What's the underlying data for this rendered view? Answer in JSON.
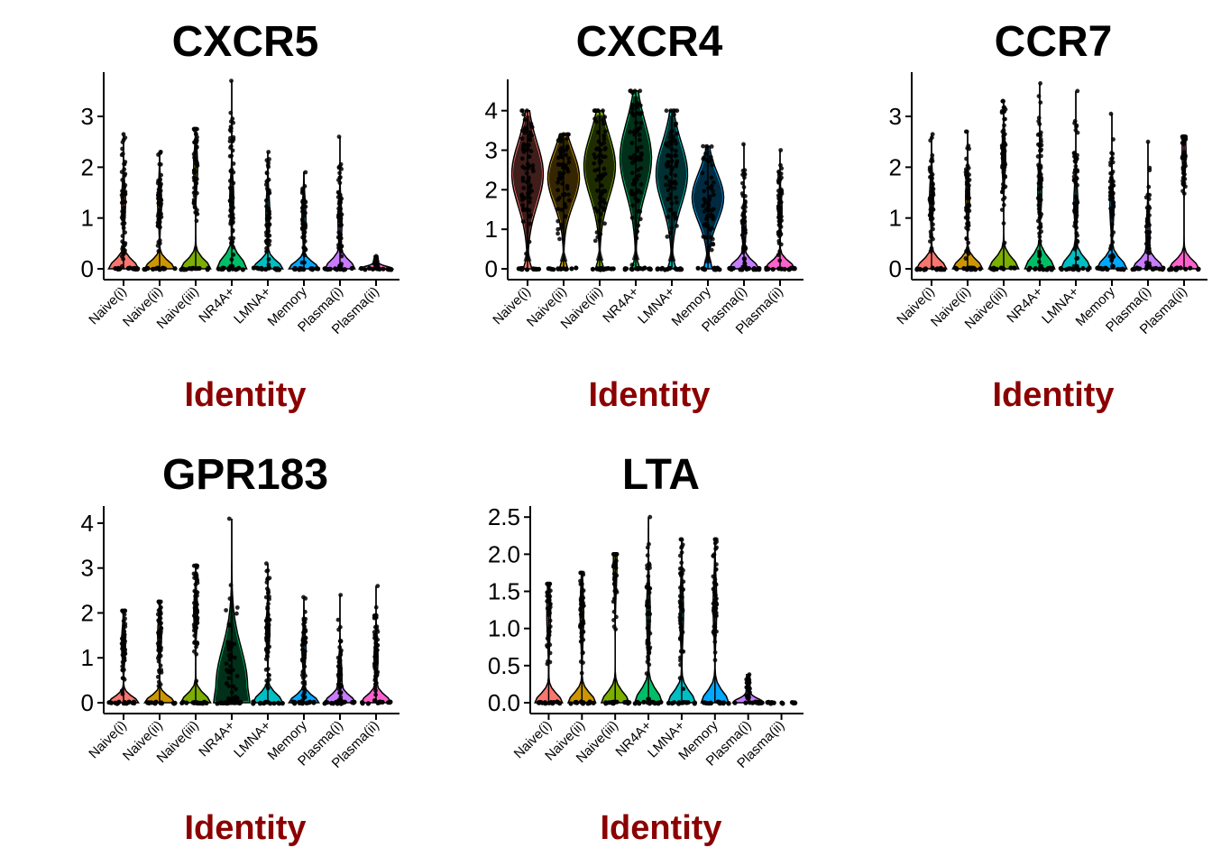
{
  "chart_data": [
    {
      "type": "violin",
      "title": "CXCR5",
      "xlabel": "Identity",
      "ylabel": "",
      "ylim": [
        0,
        3.8
      ],
      "yticks": [
        0,
        1,
        2,
        3
      ],
      "categories": [
        "Naive(i)",
        "Naive(ii)",
        "Naive(iii)",
        "NR4A+",
        "LMNA+",
        "Memory",
        "Plasma(i)",
        "Plasma(ii)"
      ],
      "colors": [
        "#F8766D",
        "#CD9600",
        "#7CAE00",
        "#00BE67",
        "#00BFC4",
        "#00A9FF",
        "#C77CFF",
        "#FF61CC"
      ],
      "max": [
        2.65,
        2.3,
        2.75,
        3.7,
        2.3,
        1.9,
        2.6,
        0.25
      ],
      "median": [
        0.0,
        0.0,
        0.0,
        0.0,
        0.0,
        0.0,
        0.0,
        0.0
      ],
      "dense_level": [
        1.3,
        1.3,
        2.0,
        1.4,
        1.1,
        1.0,
        0.9,
        0.1
      ]
    },
    {
      "type": "violin",
      "title": "CXCR4",
      "xlabel": "Identity",
      "ylabel": "",
      "ylim": [
        0,
        4.7
      ],
      "yticks": [
        0,
        1,
        2,
        3,
        4
      ],
      "categories": [
        "Naive(i)",
        "Naive(ii)",
        "Naive(iii)",
        "NR4A+",
        "LMNA+",
        "Memory",
        "Plasma(i)",
        "Plasma(ii)"
      ],
      "colors": [
        "#F8766D",
        "#CD9600",
        "#7CAE00",
        "#00BE67",
        "#00BFC4",
        "#00A9FF",
        "#C77CFF",
        "#FF61CC"
      ],
      "max": [
        4.0,
        3.4,
        4.0,
        4.5,
        4.0,
        3.1,
        3.15,
        3.0
      ],
      "median": [
        2.4,
        2.3,
        2.6,
        2.8,
        2.4,
        1.8,
        0.2,
        0.0
      ],
      "dense_level": [
        2.4,
        2.3,
        2.6,
        2.8,
        2.4,
        1.8,
        1.0,
        1.5
      ]
    },
    {
      "type": "violin",
      "title": "CCR7",
      "xlabel": "Identity",
      "ylabel": "",
      "ylim": [
        0,
        3.8
      ],
      "yticks": [
        0,
        1,
        2,
        3
      ],
      "categories": [
        "Naive(i)",
        "Naive(ii)",
        "Naive(iii)",
        "NR4A+",
        "LMNA+",
        "Memory",
        "Plasma(i)",
        "Plasma(ii)"
      ],
      "colors": [
        "#F8766D",
        "#CD9600",
        "#7CAE00",
        "#00BE67",
        "#00BFC4",
        "#00A9FF",
        "#C77CFF",
        "#FF61CC"
      ],
      "max": [
        2.65,
        2.7,
        3.3,
        3.65,
        3.5,
        3.05,
        2.5,
        2.6
      ],
      "median": [
        0.0,
        0.0,
        0.0,
        0.0,
        0.0,
        0.0,
        0.0,
        0.0
      ],
      "dense_level": [
        1.4,
        1.4,
        2.2,
        1.5,
        1.3,
        1.2,
        0.7,
        2.3
      ]
    },
    {
      "type": "violin",
      "title": "GPR183",
      "xlabel": "Identity",
      "ylabel": "",
      "ylim": [
        0,
        4.3
      ],
      "yticks": [
        0,
        1,
        2,
        3,
        4
      ],
      "categories": [
        "Naive(i)",
        "Naive(ii)",
        "Naive(iii)",
        "NR4A+",
        "LMNA+",
        "Memory",
        "Plasma(i)",
        "Plasma(ii)"
      ],
      "colors": [
        "#F8766D",
        "#CD9600",
        "#7CAE00",
        "#00BE67",
        "#00BFC4",
        "#00A9FF",
        "#C77CFF",
        "#FF61CC"
      ],
      "max": [
        2.05,
        2.25,
        3.05,
        4.1,
        3.1,
        2.35,
        2.4,
        2.6
      ],
      "median": [
        0.0,
        0.0,
        0.0,
        0.4,
        0.3,
        0.0,
        0.0,
        0.0
      ],
      "dense_level": [
        1.3,
        1.5,
        2.0,
        2.2,
        1.6,
        1.2,
        0.6,
        1.0
      ]
    },
    {
      "type": "violin",
      "title": "LTA",
      "xlabel": "Identity",
      "ylabel": "",
      "ylim": [
        0,
        2.6
      ],
      "yticks": [
        "0.0",
        "0.5",
        "1.0",
        "1.5",
        "2.0",
        "2.5"
      ],
      "categories": [
        "Naive(i)",
        "Naive(ii)",
        "Naive(iii)",
        "NR4A+",
        "LMNA+",
        "Memory",
        "Plasma(i)",
        "Plasma(ii)"
      ],
      "colors": [
        "#F8766D",
        "#CD9600",
        "#7CAE00",
        "#00BE67",
        "#00BFC4",
        "#00A9FF",
        "#C77CFF",
        "#FF61CC"
      ],
      "max": [
        1.6,
        1.75,
        2.0,
        2.5,
        2.2,
        2.2,
        0.38,
        0.0
      ],
      "median": [
        0.0,
        0.0,
        0.0,
        0.0,
        0.0,
        0.0,
        0.0,
        0.0
      ],
      "dense_level": [
        1.2,
        1.2,
        1.9,
        1.2,
        1.2,
        1.3,
        0.2,
        0.0
      ]
    }
  ],
  "style": {
    "title_color": "#000000",
    "xlabel_color": "#8B0000",
    "point_color": "#000000"
  }
}
